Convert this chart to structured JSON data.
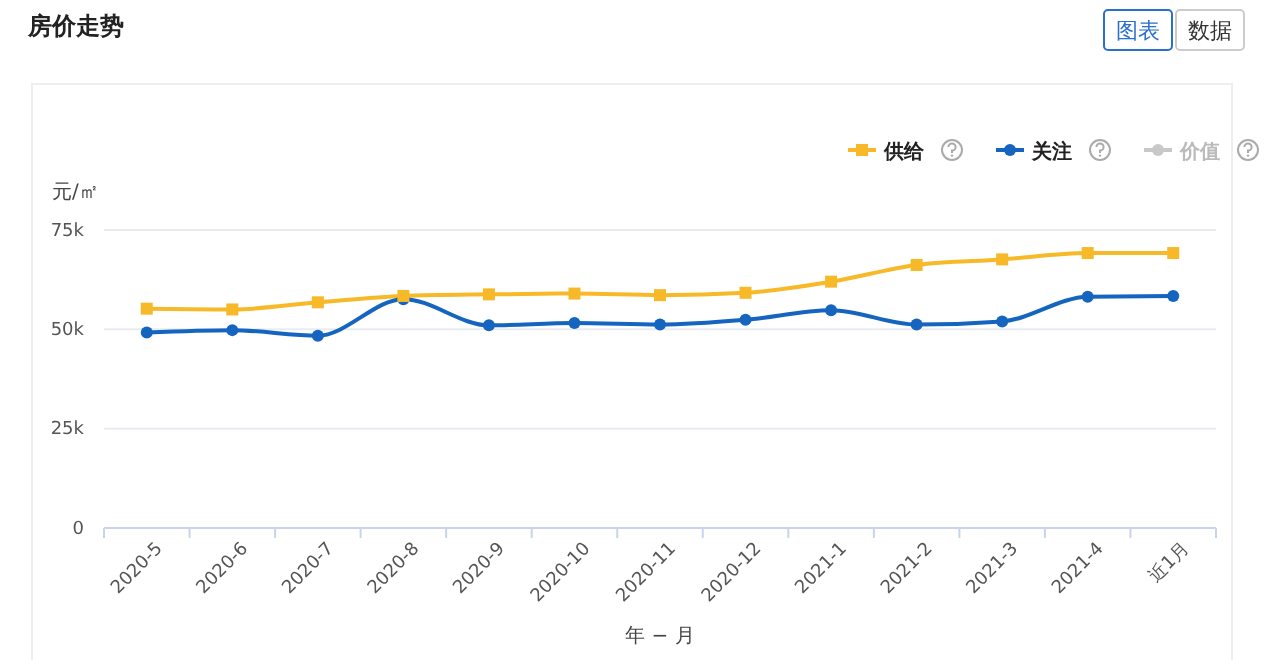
{
  "chart_data": {
    "type": "line",
    "title": "房价走势",
    "ylabel": "元/㎡",
    "xlabel": "年 − 月",
    "annotations": [
      "图表",
      "数据"
    ],
    "categories": [
      "2020-5",
      "2020-6",
      "2020-7",
      "2020-8",
      "2020-9",
      "2020-10",
      "2020-11",
      "2020-12",
      "2021-1",
      "2021-2",
      "2021-3",
      "2021-4",
      "近1月"
    ],
    "series": [
      {
        "name": "供给",
        "color": "#f7b928",
        "marker": "square",
        "values": [
          55.2,
          55,
          56.8,
          58.4,
          58.8,
          59,
          58.6,
          59.2,
          62,
          66.2,
          67.6,
          69.2,
          69.2
        ]
      },
      {
        "name": "关注",
        "color": "#1565c0",
        "marker": "circle",
        "values": [
          49.2,
          49.8,
          48.4,
          57.6,
          51,
          51.6,
          51.2,
          52.4,
          54.8,
          51.2,
          52,
          58.2,
          58.4
        ]
      },
      {
        "name": "价值",
        "color": "#c8c8c8",
        "marker": "circle",
        "values": [
          null,
          null,
          null,
          null,
          null,
          null,
          null,
          null,
          null,
          null,
          null,
          null,
          null
        ]
      }
    ],
    "ylim": [
      0,
      75
    ],
    "yticks": [
      {
        "value": 0,
        "label": "0"
      },
      {
        "value": 25,
        "label": "25k"
      },
      {
        "value": 50,
        "label": "50k"
      },
      {
        "value": 75,
        "label": "75k"
      }
    ],
    "grid": "y",
    "legend": "top right",
    "line_style": "solid"
  }
}
